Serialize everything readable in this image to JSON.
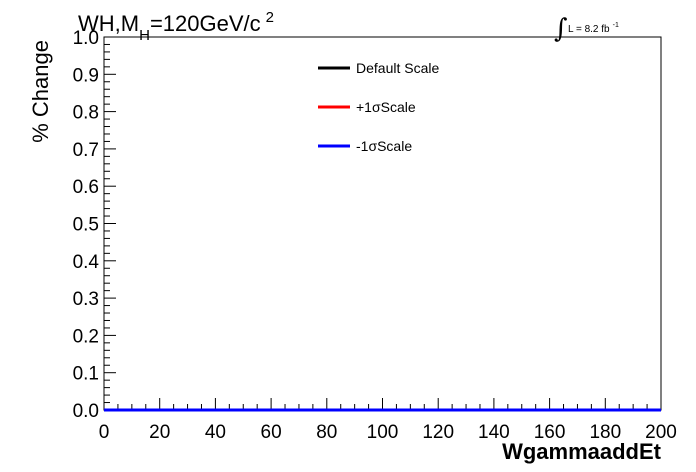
{
  "chart_data": {
    "type": "line",
    "title_parts": {
      "main": "WH,M",
      "sub": "H",
      "rest": "=120GeV/c",
      "sup": "2"
    },
    "lumi": {
      "symbol": "∫",
      "text": "L = 8.2 fb",
      "sup": "-1"
    },
    "xlabel": "WgammaaddEt",
    "ylabel": "% Change",
    "xlim": [
      0,
      200
    ],
    "ylim": [
      0,
      1.0
    ],
    "xticks": [
      0,
      20,
      40,
      60,
      80,
      100,
      120,
      140,
      160,
      180,
      200
    ],
    "yticks": [
      0.0,
      0.1,
      0.2,
      0.3,
      0.4,
      0.5,
      0.6,
      0.7,
      0.8,
      0.9,
      1.0
    ],
    "xtick_labels": [
      "0",
      "20",
      "40",
      "60",
      "80",
      "100",
      "120",
      "140",
      "160",
      "180",
      "200"
    ],
    "ytick_labels": [
      "0.0",
      "0.1",
      "0.2",
      "0.3",
      "0.4",
      "0.5",
      "0.6",
      "0.7",
      "0.8",
      "0.9",
      "1.0"
    ],
    "legend_position": "top-center",
    "grid": false,
    "series": [
      {
        "name": "Default Scale",
        "color": "#000000",
        "x": [
          0,
          200
        ],
        "y": [
          0,
          0
        ]
      },
      {
        "name": "+1σScale",
        "color": "#ff0000",
        "x": [
          0,
          200
        ],
        "y": [
          0,
          0
        ]
      },
      {
        "name": "-1σScale",
        "color": "#0000ff",
        "x": [
          0,
          200
        ],
        "y": [
          0,
          0
        ]
      }
    ]
  }
}
